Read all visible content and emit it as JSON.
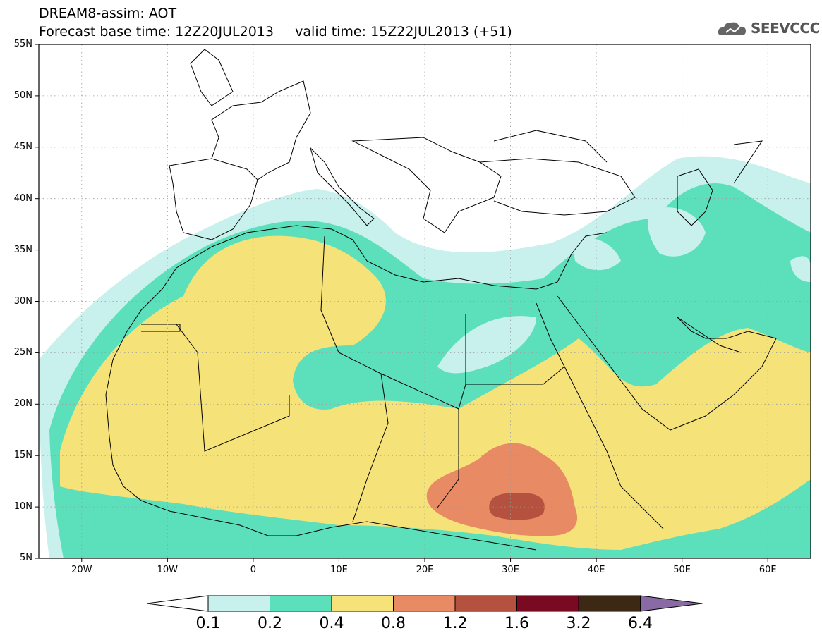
{
  "title": {
    "line1": "DREAM8-assim: AOT",
    "line2": "Forecast base time: 12Z20JUL2013     valid time: 15Z22JUL2013 (+51)"
  },
  "logo": {
    "name": "cloud-logo-icon",
    "text": "SEEVCCC"
  },
  "chart_data": {
    "type": "heatmap",
    "variable": "AOT",
    "lon_range": [
      -25,
      65
    ],
    "lat_range": [
      5,
      55
    ],
    "grid": true,
    "lat_ticks": [
      "5N",
      "10N",
      "15N",
      "20N",
      "25N",
      "30N",
      "35N",
      "40N",
      "45N",
      "50N",
      "55N"
    ],
    "lon_ticks": [
      "20W",
      "10W",
      "0",
      "10E",
      "20E",
      "30E",
      "40E",
      "50E",
      "60E"
    ],
    "colorbar": {
      "levels": [
        "0.1",
        "0.2",
        "0.4",
        "0.8",
        "1.2",
        "1.6",
        "3.2",
        "6.4"
      ],
      "colors": [
        "#ffffff",
        "#c8f0ec",
        "#5ce0bc",
        "#f5e37a",
        "#e88a63",
        "#b5513f",
        "#7a0a22",
        "#3d2816",
        "#8a6aa5"
      ]
    }
  }
}
